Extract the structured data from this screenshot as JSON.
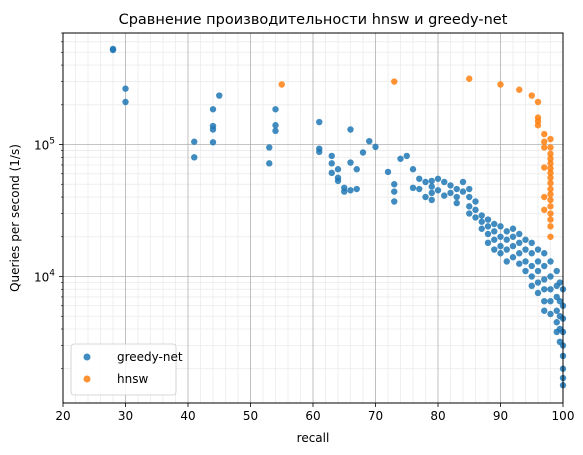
{
  "chart_data": {
    "type": "scatter",
    "title": "Сравнение производительности hnsw и greedy-net",
    "xlabel": "recall",
    "ylabel": "Queries per second (1/s)",
    "xlim": [
      20,
      100
    ],
    "ylim": [
      1100,
      700000
    ],
    "yscale": "log",
    "grid": true,
    "legend_position": "lower-left",
    "x_ticks": [
      20,
      30,
      40,
      50,
      60,
      70,
      80,
      90,
      100
    ],
    "y_major_ticks": [
      10000,
      100000
    ],
    "y_tick_labels": [
      "10^4",
      "10^5"
    ],
    "series": [
      {
        "name": "greedy-net",
        "color": "#1f77b4",
        "points": [
          [
            28,
            530000
          ],
          [
            28,
            520000
          ],
          [
            30,
            265000
          ],
          [
            30,
            210000
          ],
          [
            41,
            105000
          ],
          [
            41,
            80000
          ],
          [
            44,
            185000
          ],
          [
            44,
            138000
          ],
          [
            44,
            130000
          ],
          [
            44,
            104000
          ],
          [
            45,
            235000
          ],
          [
            53,
            95000
          ],
          [
            53,
            72000
          ],
          [
            54,
            185000
          ],
          [
            54,
            140000
          ],
          [
            54,
            127000
          ],
          [
            61,
            148000
          ],
          [
            61,
            93000
          ],
          [
            61,
            88000
          ],
          [
            63,
            82000
          ],
          [
            63,
            72000
          ],
          [
            63,
            61000
          ],
          [
            64,
            65000
          ],
          [
            64,
            56000
          ],
          [
            64,
            53000
          ],
          [
            65,
            47000
          ],
          [
            65,
            44000
          ],
          [
            66,
            130000
          ],
          [
            66,
            73000
          ],
          [
            66,
            45000
          ],
          [
            67,
            65000
          ],
          [
            67,
            46000
          ],
          [
            68,
            87000
          ],
          [
            69,
            106000
          ],
          [
            70,
            96000
          ],
          [
            72,
            62000
          ],
          [
            73,
            50000
          ],
          [
            73,
            44000
          ],
          [
            73,
            37000
          ],
          [
            74,
            78000
          ],
          [
            75,
            82000
          ],
          [
            76,
            65000
          ],
          [
            76,
            47000
          ],
          [
            77,
            55000
          ],
          [
            77,
            46000
          ],
          [
            78,
            52000
          ],
          [
            78,
            40000
          ],
          [
            79,
            53000
          ],
          [
            79,
            48000
          ],
          [
            79,
            43000
          ],
          [
            79,
            38000
          ],
          [
            80,
            55000
          ],
          [
            80,
            45000
          ],
          [
            81,
            52000
          ],
          [
            81,
            41000
          ],
          [
            82,
            49000
          ],
          [
            82,
            43000
          ],
          [
            83,
            46000
          ],
          [
            83,
            40000
          ],
          [
            83,
            36000
          ],
          [
            84,
            52000
          ],
          [
            84,
            44000
          ],
          [
            85,
            46000
          ],
          [
            85,
            40000
          ],
          [
            85,
            34000
          ],
          [
            85,
            30000
          ],
          [
            86,
            37000
          ],
          [
            86,
            32000
          ],
          [
            86,
            28000
          ],
          [
            87,
            29000
          ],
          [
            87,
            26000
          ],
          [
            87,
            23000
          ],
          [
            88,
            27000
          ],
          [
            88,
            24000
          ],
          [
            88,
            21000
          ],
          [
            88,
            18000
          ],
          [
            89,
            25000
          ],
          [
            89,
            22000
          ],
          [
            89,
            19000
          ],
          [
            89,
            16000
          ],
          [
            90,
            24000
          ],
          [
            90,
            20000
          ],
          [
            90,
            17000
          ],
          [
            90,
            15000
          ],
          [
            91,
            22000
          ],
          [
            91,
            19000
          ],
          [
            91,
            16000
          ],
          [
            91,
            13000
          ],
          [
            92,
            23000
          ],
          [
            92,
            20000
          ],
          [
            92,
            17000
          ],
          [
            92,
            14000
          ],
          [
            93,
            21000
          ],
          [
            93,
            18000
          ],
          [
            93,
            15000
          ],
          [
            93,
            12500
          ],
          [
            94,
            19000
          ],
          [
            94,
            16000
          ],
          [
            94,
            13000
          ],
          [
            94,
            11000
          ],
          [
            95,
            18000
          ],
          [
            95,
            15000
          ],
          [
            95,
            12000
          ],
          [
            95,
            10000
          ],
          [
            95,
            8500
          ],
          [
            96,
            16000
          ],
          [
            96,
            13000
          ],
          [
            96,
            11000
          ],
          [
            96,
            9000
          ],
          [
            96,
            7500
          ],
          [
            97,
            15000
          ],
          [
            97,
            12000
          ],
          [
            97,
            9500
          ],
          [
            97,
            8000
          ],
          [
            97,
            6500
          ],
          [
            97,
            5500
          ],
          [
            98,
            13000
          ],
          [
            98,
            10000
          ],
          [
            98,
            8000
          ],
          [
            98,
            6500
          ],
          [
            98,
            5200
          ],
          [
            99,
            11000
          ],
          [
            99,
            8500
          ],
          [
            99,
            7000
          ],
          [
            99,
            5500
          ],
          [
            99,
            4500
          ],
          [
            99,
            3800
          ],
          [
            99.5,
            9000
          ],
          [
            99.5,
            6500
          ],
          [
            99.5,
            5000
          ],
          [
            99.5,
            4000
          ],
          [
            99.5,
            3200
          ],
          [
            100,
            8000
          ],
          [
            100,
            6000
          ],
          [
            100,
            4800
          ],
          [
            100,
            3800
          ],
          [
            100,
            3000
          ],
          [
            100,
            2500
          ],
          [
            100,
            2000
          ],
          [
            100,
            1700
          ],
          [
            100,
            1500
          ]
        ]
      },
      {
        "name": "hnsw",
        "color": "#ff7f0e",
        "points": [
          [
            55,
            285000
          ],
          [
            73,
            300000
          ],
          [
            85,
            315000
          ],
          [
            90,
            285000
          ],
          [
            93,
            260000
          ],
          [
            95,
            235000
          ],
          [
            96,
            210000
          ],
          [
            96,
            160000
          ],
          [
            96,
            150000
          ],
          [
            96,
            140000
          ],
          [
            97,
            120000
          ],
          [
            97,
            105000
          ],
          [
            97,
            95000
          ],
          [
            97,
            67000
          ],
          [
            97,
            40000
          ],
          [
            97,
            32000
          ],
          [
            98,
            110000
          ],
          [
            98,
            95000
          ],
          [
            98,
            85000
          ],
          [
            98,
            78000
          ],
          [
            98,
            72000
          ],
          [
            98,
            66000
          ],
          [
            98,
            61000
          ],
          [
            98,
            56000
          ],
          [
            98,
            51000
          ],
          [
            98,
            46000
          ],
          [
            98,
            42000
          ],
          [
            98,
            38000
          ],
          [
            98,
            34000
          ],
          [
            98,
            30000
          ],
          [
            98,
            27000
          ],
          [
            98,
            24000
          ],
          [
            98,
            20000
          ]
        ]
      }
    ]
  }
}
